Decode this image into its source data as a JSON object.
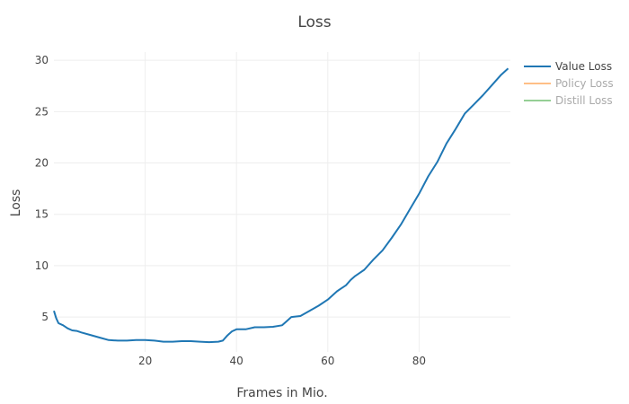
{
  "chart_data": {
    "type": "line",
    "title": "Loss",
    "xlabel": "Frames in Mio.",
    "ylabel": "Loss",
    "xlim": [
      0,
      100
    ],
    "ylim": [
      1.6,
      30.8
    ],
    "x_ticks": [
      20,
      40,
      60,
      80
    ],
    "y_ticks": [
      5,
      10,
      15,
      20,
      25,
      30
    ],
    "grid": true,
    "legend_position": "top-right",
    "series": [
      {
        "name": "Value Loss",
        "color": "#1f77b4",
        "visible": true,
        "x": [
          0,
          0.5,
          1,
          2,
          3,
          4,
          5,
          6,
          8,
          10,
          12,
          14,
          16,
          18,
          20,
          22,
          24,
          26,
          28,
          30,
          32,
          34,
          36,
          37,
          38,
          39,
          40,
          42,
          44,
          46,
          48,
          50,
          51,
          52,
          54,
          56,
          58,
          60,
          61,
          62,
          63,
          64,
          65,
          66,
          67,
          68,
          70,
          72,
          74,
          76,
          78,
          80,
          82,
          84,
          86,
          88,
          90,
          92,
          94,
          96,
          98,
          99.5
        ],
        "y": [
          5.6,
          4.9,
          4.4,
          4.2,
          3.9,
          3.7,
          3.65,
          3.5,
          3.25,
          3.0,
          2.75,
          2.7,
          2.7,
          2.75,
          2.75,
          2.7,
          2.6,
          2.6,
          2.65,
          2.65,
          2.6,
          2.55,
          2.6,
          2.7,
          3.2,
          3.6,
          3.8,
          3.8,
          4.0,
          4.0,
          4.05,
          4.2,
          4.6,
          5.0,
          5.1,
          5.6,
          6.1,
          6.7,
          7.1,
          7.5,
          7.8,
          8.1,
          8.6,
          9.0,
          9.3,
          9.6,
          10.6,
          11.5,
          12.7,
          14.0,
          15.5,
          17.0,
          18.7,
          20.1,
          21.9,
          23.3,
          24.8,
          25.7,
          26.6,
          27.6,
          28.6,
          29.2
        ]
      },
      {
        "name": "Policy Loss",
        "color": "#ff7f0e",
        "visible": false,
        "x": [],
        "y": []
      },
      {
        "name": "Distill Loss",
        "color": "#2ca02c",
        "visible": false,
        "x": [],
        "y": []
      }
    ]
  }
}
